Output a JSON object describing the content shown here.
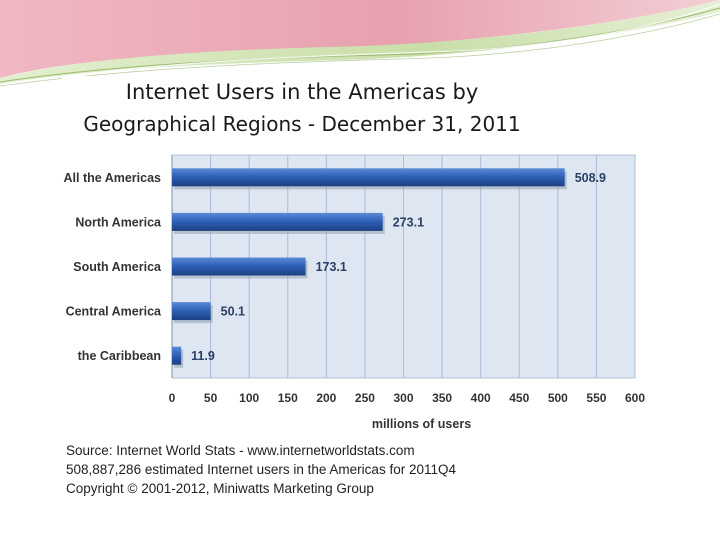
{
  "colors": {
    "bar": "#2f62b8",
    "bar_light": "#5b8ad6",
    "bar_dark": "#1c3f80",
    "plot_bg": "#dde6f1",
    "grid": "#a9bdd6",
    "deco_pink": "#e9a6b4",
    "deco_green": "#c8dca8"
  },
  "chart_data": {
    "type": "bar",
    "orientation": "horizontal",
    "title": "Internet Users in the Americas by",
    "subtitle": "Geographical Regions - December 31, 2011",
    "categories": [
      "All the Americas",
      "North America",
      "South America",
      "Central America",
      "the Caribbean"
    ],
    "values": [
      508.9,
      273.1,
      173.1,
      50.1,
      11.9
    ],
    "value_labels": [
      "508.9",
      "273.1",
      "173.1",
      "50.1",
      "11.9"
    ],
    "xlabel": "millions of users",
    "ylabel": "",
    "xlim": [
      0,
      600
    ],
    "xticks": [
      "0",
      "50",
      "100",
      "150",
      "200",
      "250",
      "300",
      "350",
      "400",
      "450",
      "500",
      "550",
      "600"
    ],
    "grid": true,
    "legend": "none"
  },
  "footer": {
    "source": "Source:  Internet World Stats  -  www.internetworldstats.com",
    "estimate": "508,887,286 estimated Internet users in the Americas for 2011Q4",
    "copyright": "Copyright © 2001-2012, Miniwatts Marketing Group"
  }
}
